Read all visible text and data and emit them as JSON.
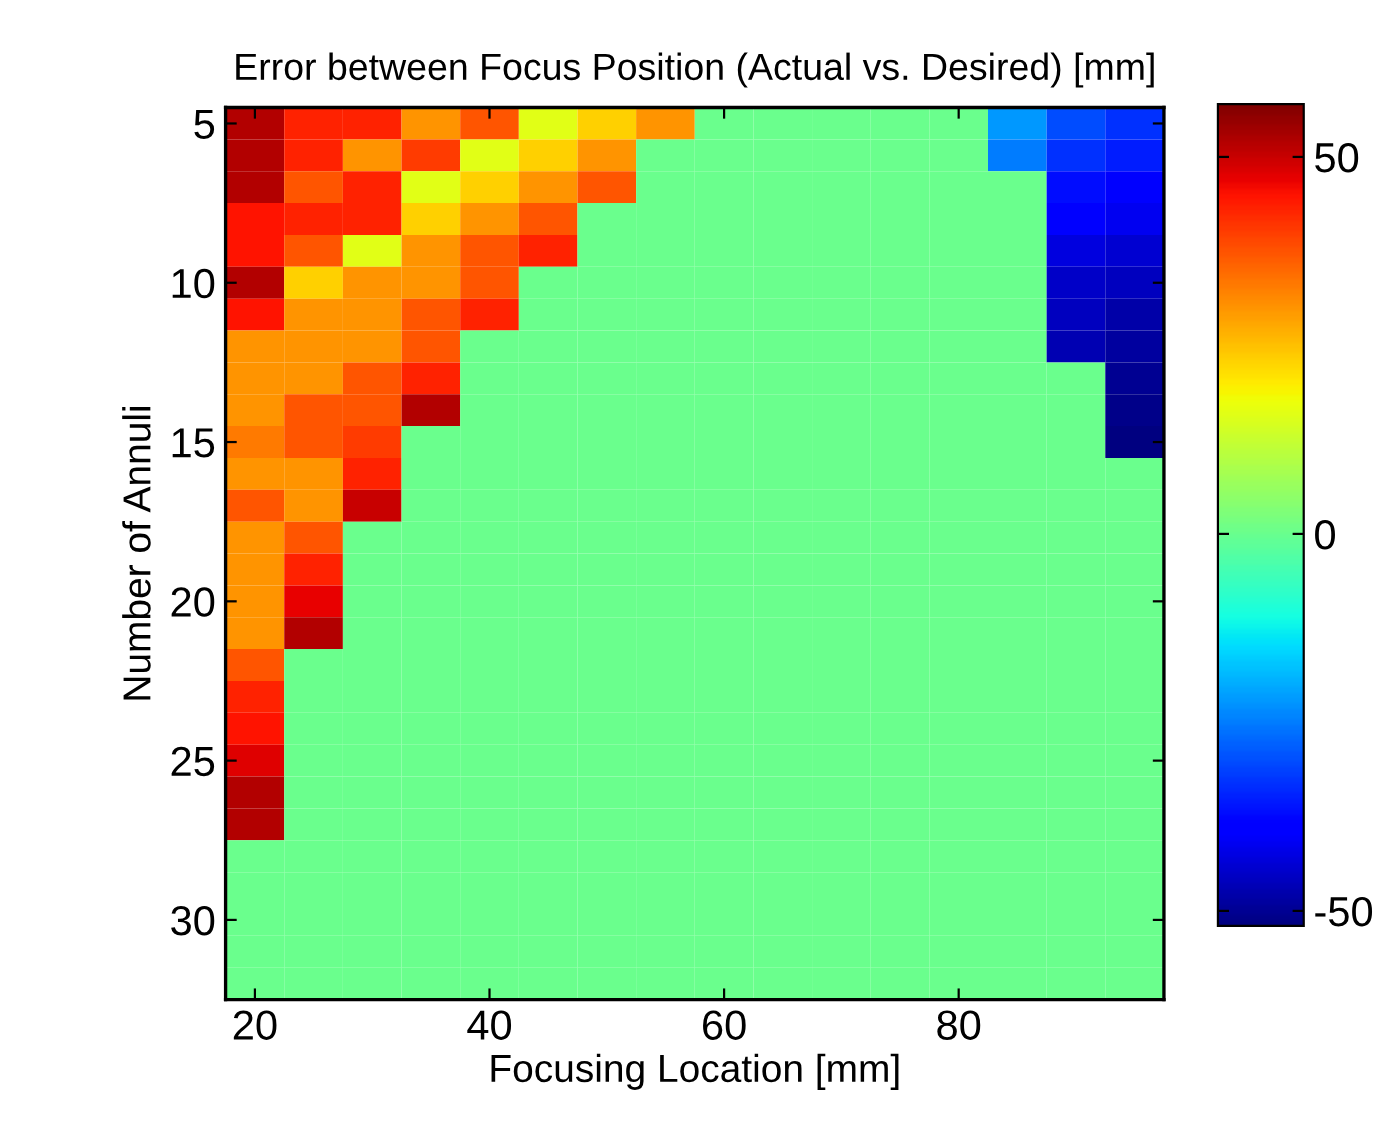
{
  "chart_data": {
    "type": "heatmap",
    "title": "Error between Focus Position (Actual vs. Desired) [mm]",
    "xlabel": "Focusing Location [mm]",
    "ylabel": "Number of Annuli",
    "categories": [
      "20",
      null,
      null,
      null,
      "40",
      null,
      null,
      null,
      "60",
      null,
      null,
      null,
      "80",
      null,
      null,
      null
    ],
    "y_categories": [
      "5",
      null,
      null,
      null,
      null,
      "10",
      null,
      null,
      null,
      null,
      "15",
      null,
      null,
      null,
      null,
      "20",
      null,
      null,
      null,
      null,
      "25",
      null,
      null,
      null,
      null,
      "30",
      null,
      null
    ],
    "cells": [
      [
        52,
        43,
        43,
        30,
        37,
        16,
        23,
        30,
        0,
        0,
        0,
        0,
        0,
        -22,
        -30,
        -33
      ],
      [
        52,
        43,
        30,
        40,
        16,
        23,
        30,
        0,
        0,
        0,
        0,
        0,
        0,
        -25,
        -33,
        -35
      ],
      [
        52,
        37,
        43,
        16,
        23,
        30,
        37,
        0,
        0,
        0,
        0,
        0,
        0,
        0,
        -37,
        -38
      ],
      [
        45,
        43,
        43,
        23,
        30,
        37,
        0,
        0,
        0,
        0,
        0,
        0,
        0,
        0,
        -40,
        -41
      ],
      [
        45,
        37,
        16,
        30,
        37,
        43,
        0,
        0,
        0,
        0,
        0,
        0,
        0,
        0,
        -43,
        -44
      ],
      [
        52,
        23,
        30,
        30,
        37,
        0,
        0,
        0,
        0,
        0,
        0,
        0,
        0,
        0,
        -45,
        -46
      ],
      [
        45,
        30,
        30,
        37,
        43,
        0,
        0,
        0,
        0,
        0,
        0,
        0,
        0,
        0,
        -46,
        -48
      ],
      [
        30,
        30,
        30,
        37,
        0,
        0,
        0,
        0,
        0,
        0,
        0,
        0,
        0,
        0,
        -47,
        -49
      ],
      [
        30,
        30,
        37,
        43,
        0,
        0,
        0,
        0,
        0,
        0,
        0,
        0,
        0,
        0,
        0,
        -50
      ],
      [
        30,
        37,
        37,
        52,
        0,
        0,
        0,
        0,
        0,
        0,
        0,
        0,
        0,
        0,
        0,
        -51
      ],
      [
        33,
        37,
        40,
        0,
        0,
        0,
        0,
        0,
        0,
        0,
        0,
        0,
        0,
        0,
        0,
        -52
      ],
      [
        30,
        30,
        43,
        0,
        0,
        0,
        0,
        0,
        0,
        0,
        0,
        0,
        0,
        0,
        0,
        0
      ],
      [
        37,
        30,
        50,
        0,
        0,
        0,
        0,
        0,
        0,
        0,
        0,
        0,
        0,
        0,
        0,
        0
      ],
      [
        30,
        37,
        0,
        0,
        0,
        0,
        0,
        0,
        0,
        0,
        0,
        0,
        0,
        0,
        0,
        0
      ],
      [
        30,
        43,
        0,
        0,
        0,
        0,
        0,
        0,
        0,
        0,
        0,
        0,
        0,
        0,
        0,
        0
      ],
      [
        30,
        47,
        0,
        0,
        0,
        0,
        0,
        0,
        0,
        0,
        0,
        0,
        0,
        0,
        0,
        0
      ],
      [
        30,
        52,
        0,
        0,
        0,
        0,
        0,
        0,
        0,
        0,
        0,
        0,
        0,
        0,
        0,
        0
      ],
      [
        37,
        0,
        0,
        0,
        0,
        0,
        0,
        0,
        0,
        0,
        0,
        0,
        0,
        0,
        0,
        0
      ],
      [
        43,
        0,
        0,
        0,
        0,
        0,
        0,
        0,
        0,
        0,
        0,
        0,
        0,
        0,
        0,
        0
      ],
      [
        45,
        0,
        0,
        0,
        0,
        0,
        0,
        0,
        0,
        0,
        0,
        0,
        0,
        0,
        0,
        0
      ],
      [
        48,
        0,
        0,
        0,
        0,
        0,
        0,
        0,
        0,
        0,
        0,
        0,
        0,
        0,
        0,
        0
      ],
      [
        52,
        0,
        0,
        0,
        0,
        0,
        0,
        0,
        0,
        0,
        0,
        0,
        0,
        0,
        0,
        0
      ],
      [
        52,
        0,
        0,
        0,
        0,
        0,
        0,
        0,
        0,
        0,
        0,
        0,
        0,
        0,
        0,
        0
      ],
      [
        0,
        0,
        0,
        0,
        0,
        0,
        0,
        0,
        0,
        0,
        0,
        0,
        0,
        0,
        0,
        0
      ],
      [
        0,
        0,
        0,
        0,
        0,
        0,
        0,
        0,
        0,
        0,
        0,
        0,
        0,
        0,
        0,
        0
      ],
      [
        0,
        0,
        0,
        0,
        0,
        0,
        0,
        0,
        0,
        0,
        0,
        0,
        0,
        0,
        0,
        0
      ],
      [
        0,
        0,
        0,
        0,
        0,
        0,
        0,
        0,
        0,
        0,
        0,
        0,
        0,
        0,
        0,
        0
      ],
      [
        0,
        0,
        0,
        0,
        0,
        0,
        0,
        0,
        0,
        0,
        0,
        0,
        0,
        0,
        0,
        0
      ]
    ],
    "clim": [
      -52,
      57
    ],
    "cticks": [
      -50,
      0,
      50
    ]
  }
}
